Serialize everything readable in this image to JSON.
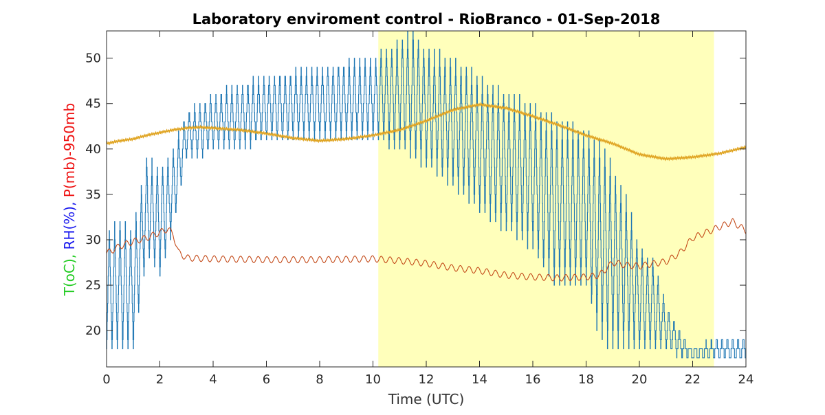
{
  "chart_data": {
    "type": "line",
    "title": "Laboratory enviroment control - RioBranco - 01-Sep-2018",
    "xlabel": "Time (UTC)",
    "ylabel_parts": [
      {
        "text": "T(oC), ",
        "color": "#22cc22"
      },
      {
        "text": "RH(%), ",
        "color": "#1a1aee"
      },
      {
        "text": "P(mb)-950mb",
        "color": "#ee1111"
      }
    ],
    "xlim": [
      0,
      24
    ],
    "ylim": [
      16,
      53
    ],
    "xticks": [
      0,
      2,
      4,
      6,
      8,
      10,
      12,
      14,
      16,
      18,
      20,
      22,
      24
    ],
    "yticks": [
      20,
      25,
      30,
      35,
      40,
      45,
      50
    ],
    "grid": false,
    "highlight_band": {
      "x0": 10.2,
      "x1": 22.8,
      "color": "#ffffbb"
    },
    "series": [
      {
        "color": "#1f77b4",
        "style": "oscillating",
        "envelope_x": [
          0,
          0.5,
          1.0,
          1.5,
          2.0,
          2.5,
          3.0,
          3.5,
          4.0,
          5.0,
          6.0,
          8.0,
          10.0,
          11.0,
          11.5,
          12.0,
          13.0,
          14.0,
          15.0,
          16.0,
          16.5,
          17.0,
          18.0,
          18.5,
          19.0,
          19.5,
          20.0,
          20.5,
          21.0,
          21.5,
          22.0,
          23.0,
          24.0
        ],
        "envelope_max": [
          31,
          32,
          31,
          39,
          38,
          40,
          44,
          45,
          46,
          47,
          48,
          49,
          50,
          52,
          53,
          51,
          50,
          48,
          46,
          45,
          44,
          43,
          42,
          41,
          38,
          35,
          29,
          28,
          23,
          20,
          18,
          19,
          19
        ],
        "envelope_min": [
          18,
          18,
          18,
          28,
          26,
          31,
          39,
          39,
          40,
          40,
          41,
          41,
          41,
          40,
          39,
          38,
          36,
          33,
          31,
          29,
          26,
          25,
          25,
          19,
          18,
          18,
          18,
          18,
          18,
          17,
          17,
          17,
          16.5
        ],
        "period_h": 0.2
      },
      {
        "color": "#e0a524",
        "style": "smooth",
        "x": [
          0,
          0.5,
          1,
          1.5,
          2,
          2.5,
          3,
          3.5,
          4,
          5,
          6,
          7,
          8,
          9,
          10,
          11,
          12,
          13,
          14,
          15,
          16,
          17,
          18,
          19,
          20,
          21,
          22,
          23,
          24
        ],
        "y": [
          40.6,
          40.9,
          41.1,
          41.5,
          41.8,
          42.1,
          42.3,
          42.4,
          42.3,
          42.1,
          41.7,
          41.2,
          40.9,
          41.1,
          41.5,
          42.1,
          43.1,
          44.3,
          44.9,
          44.5,
          43.6,
          42.6,
          41.5,
          40.6,
          39.4,
          38.9,
          39.1,
          39.5,
          40.2
        ]
      },
      {
        "color": "#c44b1a",
        "style": "wavy",
        "x": [
          0,
          0.5,
          1,
          1.5,
          2,
          2.3,
          2.5,
          2.7,
          3,
          4,
          6,
          8,
          10,
          11,
          12,
          13,
          14,
          15,
          16,
          17,
          18,
          18.5,
          19,
          19.5,
          20,
          21,
          21.5,
          22,
          23,
          23.5,
          24
        ],
        "y": [
          28.5,
          29.3,
          29.8,
          30.2,
          30.8,
          31.2,
          30.6,
          28.6,
          28.0,
          27.9,
          27.8,
          27.8,
          27.9,
          27.7,
          27.4,
          26.9,
          26.6,
          26.1,
          25.9,
          25.8,
          25.9,
          26.1,
          27.5,
          27.2,
          27.1,
          27.6,
          28.5,
          30.2,
          31.4,
          32.0,
          31.0
        ]
      }
    ]
  }
}
